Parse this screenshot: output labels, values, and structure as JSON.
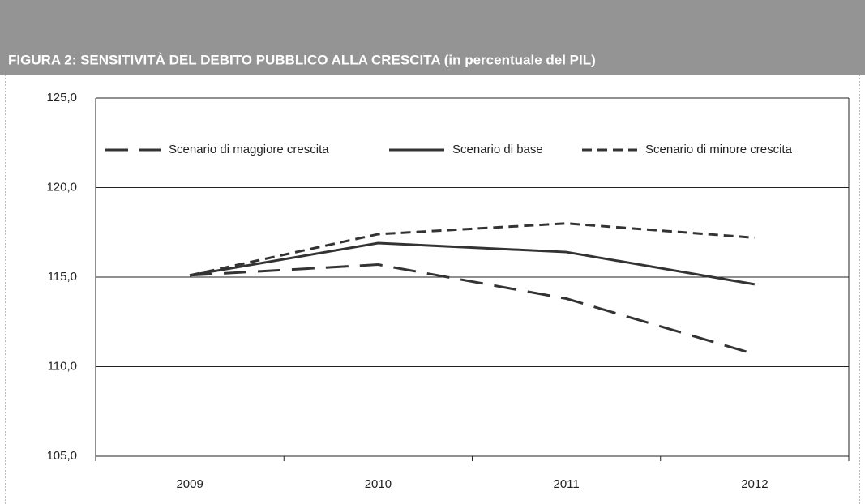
{
  "chart_data": {
    "type": "line",
    "title": "FIGURA 2: SENSITIVITÀ DEL DEBITO PUBBLICO ALLA CRESCITA (in percentuale del PIL)",
    "categories": [
      "2009",
      "2010",
      "2011",
      "2012"
    ],
    "series": [
      {
        "name": "Scenario di maggiore crescita",
        "color": "#333333",
        "style": "long-dash",
        "values": [
          115.1,
          115.7,
          113.8,
          110.7
        ]
      },
      {
        "name": "Scenario di base",
        "color": "#333333",
        "style": "solid",
        "values": [
          115.1,
          116.9,
          116.4,
          114.6
        ]
      },
      {
        "name": "Scenario di minore crescita",
        "color": "#333333",
        "style": "short-dash",
        "values": [
          115.1,
          117.4,
          118.0,
          117.2
        ]
      }
    ],
    "ylim": [
      105,
      125
    ],
    "yticks": [
      {
        "value": 105,
        "label": "105,0"
      },
      {
        "value": 110,
        "label": "110,0"
      },
      {
        "value": 115,
        "label": "115,0"
      },
      {
        "value": 120,
        "label": "120,0"
      },
      {
        "value": 125,
        "label": "125,0"
      }
    ],
    "grid": true,
    "legend": "top"
  }
}
